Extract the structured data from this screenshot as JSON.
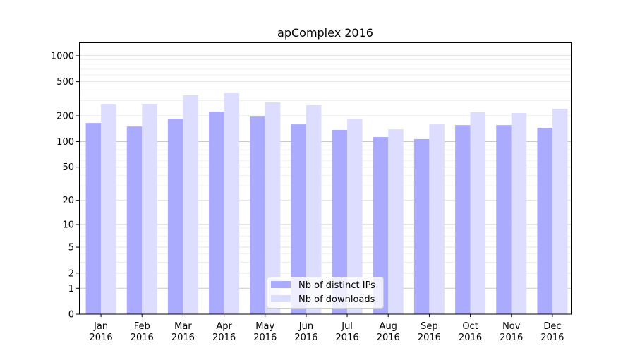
{
  "chart_data": {
    "type": "bar",
    "title": "apComplex 2016",
    "xlabel": "",
    "ylabel": "",
    "yscale": "log(1+y)",
    "ylim": [
      0,
      1300
    ],
    "yticks": [
      0,
      1,
      2,
      5,
      10,
      20,
      50,
      100,
      200,
      500,
      1000
    ],
    "grid": true,
    "legend_position": "bottom-center",
    "categories": [
      [
        "Jan",
        "2016"
      ],
      [
        "Feb",
        "2016"
      ],
      [
        "Mar",
        "2016"
      ],
      [
        "Apr",
        "2016"
      ],
      [
        "May",
        "2016"
      ],
      [
        "Jun",
        "2016"
      ],
      [
        "Jul",
        "2016"
      ],
      [
        "Aug",
        "2016"
      ],
      [
        "Sep",
        "2016"
      ],
      [
        "Oct",
        "2016"
      ],
      [
        "Nov",
        "2016"
      ],
      [
        "Dec",
        "2016"
      ]
    ],
    "series": [
      {
        "name": "Nb of distinct IPs",
        "color": "#aaaaff",
        "values": [
          165,
          150,
          185,
          224,
          196,
          159,
          137,
          113,
          107,
          156,
          156,
          145
        ]
      },
      {
        "name": "Nb of downloads",
        "color": "#ddddff",
        "values": [
          271,
          271,
          347,
          367,
          287,
          266,
          185,
          139,
          159,
          220,
          216,
          242
        ]
      }
    ]
  }
}
